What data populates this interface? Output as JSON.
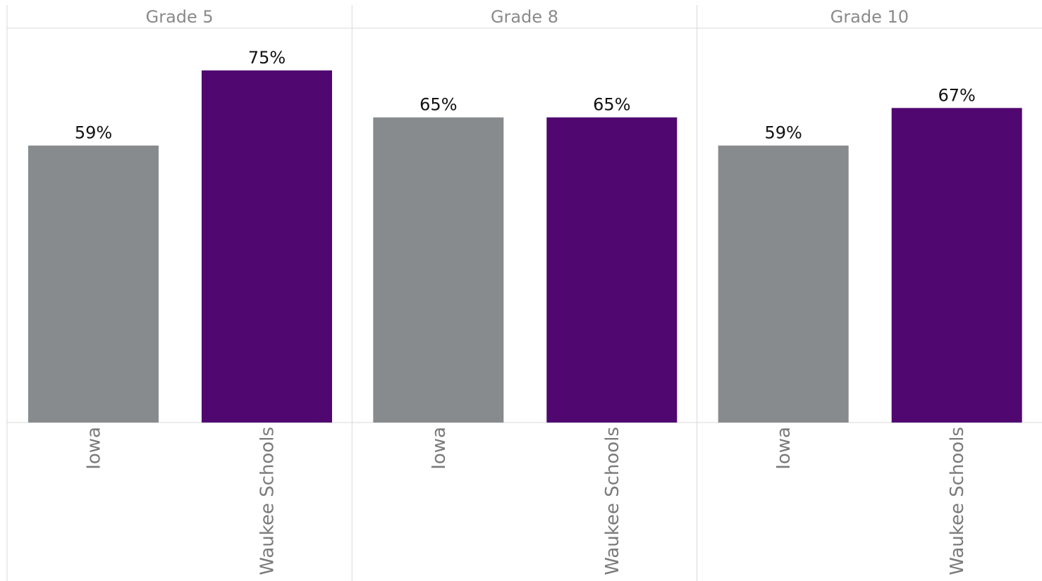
{
  "chart_data": {
    "type": "bar",
    "panels": [
      {
        "title": "Grade 5",
        "categories": [
          "Iowa",
          "Waukee Schools"
        ],
        "values": [
          59,
          75
        ],
        "labels": [
          "59%",
          "75%"
        ]
      },
      {
        "title": "Grade 8",
        "categories": [
          "Iowa",
          "Waukee Schools"
        ],
        "values": [
          65,
          65
        ],
        "labels": [
          "65%",
          "65%"
        ]
      },
      {
        "title": "Grade 10",
        "categories": [
          "Iowa",
          "Waukee Schools"
        ],
        "values": [
          59,
          67
        ],
        "labels": [
          "59%",
          "67%"
        ]
      }
    ],
    "colors": {
      "Iowa": "#888b8d",
      "Waukee Schools": "#500770"
    },
    "ylim": [
      0,
      100
    ],
    "grid": false,
    "legend": "none"
  }
}
